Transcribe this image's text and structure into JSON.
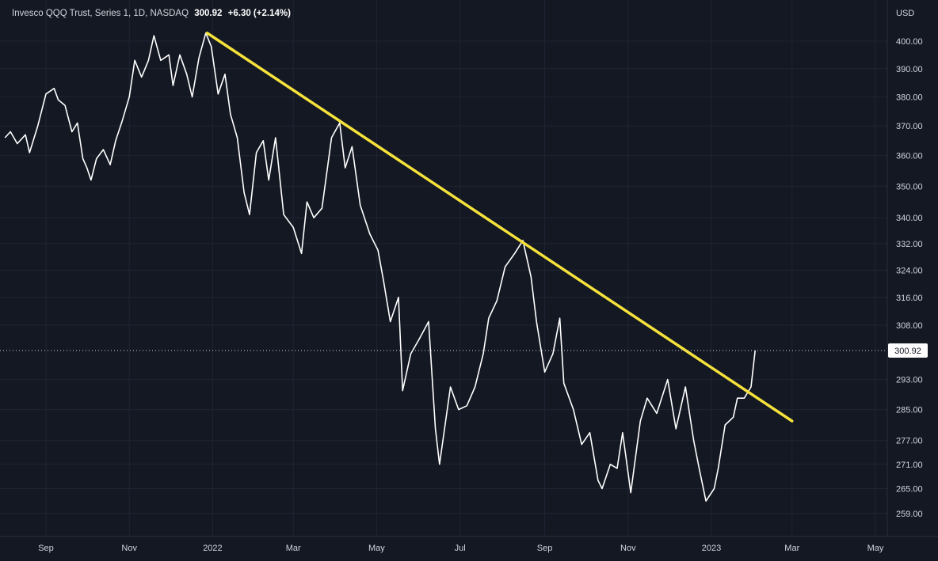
{
  "header": {
    "symbol_text": "Invesco QQQ Trust, Series 1, 1D, NASDAQ",
    "last_price": "300.92",
    "change": "+6.30 (+2.14%)"
  },
  "axis": {
    "currency": "USD"
  },
  "colors": {
    "background": "#141823",
    "grid": "#1f2433",
    "price_line": "#ffffff",
    "trendline": "#f5e23a",
    "axis_text": "#d1d4dc",
    "label_bg": "#ffffff",
    "label_text": "#141823"
  },
  "chart_data": {
    "type": "line",
    "title": "Invesco QQQ Trust, Series 1, 1D, NASDAQ",
    "xlabel": "",
    "ylabel": "",
    "ylim": [
      256,
      404
    ],
    "grid": true,
    "yscale": "log",
    "y_ticks": [
      400.0,
      390.0,
      380.0,
      370.0,
      360.0,
      350.0,
      340.0,
      332.0,
      324.0,
      316.0,
      308.0,
      293.0,
      285.0,
      277.0,
      271.0,
      265.0,
      259.0
    ],
    "y_tick_labels": [
      "400.00",
      "390.00",
      "380.00",
      "370.00",
      "360.00",
      "350.00",
      "340.00",
      "332.00",
      "324.00",
      "316.00",
      "308.00",
      "293.00",
      "285.00",
      "277.00",
      "271.00",
      "265.00",
      "259.00"
    ],
    "x_ticks": [
      "2021-09-01",
      "2021-11-01",
      "2022-01-01",
      "2022-03-01",
      "2022-05-01",
      "2022-07-01",
      "2022-09-01",
      "2022-11-01",
      "2023-01-01",
      "2023-03-01",
      "2023-05-01"
    ],
    "x_tick_labels": [
      "Sep",
      "Nov",
      "2022",
      "Mar",
      "May",
      "Jul",
      "Sep",
      "Nov",
      "2023",
      "Mar",
      "May"
    ],
    "last_value_label": "300.92",
    "series": [
      {
        "values": [
          [
            "2021-08-02",
            366
          ],
          [
            "2021-08-06",
            368
          ],
          [
            "2021-08-11",
            364
          ],
          [
            "2021-08-17",
            367
          ],
          [
            "2021-08-20",
            361
          ],
          [
            "2021-08-26",
            370
          ],
          [
            "2021-09-01",
            381
          ],
          [
            "2021-09-07",
            383
          ],
          [
            "2021-09-10",
            379
          ],
          [
            "2021-09-15",
            377
          ],
          [
            "2021-09-20",
            368
          ],
          [
            "2021-09-24",
            371
          ],
          [
            "2021-09-28",
            359
          ],
          [
            "2021-10-01",
            356
          ],
          [
            "2021-10-04",
            352
          ],
          [
            "2021-10-08",
            359
          ],
          [
            "2021-10-13",
            362
          ],
          [
            "2021-10-18",
            357
          ],
          [
            "2021-10-22",
            365
          ],
          [
            "2021-10-27",
            372
          ],
          [
            "2021-11-01",
            380
          ],
          [
            "2021-11-05",
            393
          ],
          [
            "2021-11-10",
            387
          ],
          [
            "2021-11-15",
            393
          ],
          [
            "2021-11-19",
            402
          ],
          [
            "2021-11-24",
            393
          ],
          [
            "2021-11-30",
            395
          ],
          [
            "2021-12-03",
            384
          ],
          [
            "2021-12-08",
            395
          ],
          [
            "2021-12-13",
            388
          ],
          [
            "2021-12-17",
            380
          ],
          [
            "2021-12-22",
            394
          ],
          [
            "2021-12-27",
            403
          ],
          [
            "2021-12-31",
            398
          ],
          [
            "2022-01-05",
            381
          ],
          [
            "2022-01-10",
            388
          ],
          [
            "2022-01-14",
            374
          ],
          [
            "2022-01-19",
            366
          ],
          [
            "2022-01-24",
            348
          ],
          [
            "2022-01-28",
            341
          ],
          [
            "2022-02-02",
            361
          ],
          [
            "2022-02-07",
            365
          ],
          [
            "2022-02-11",
            352
          ],
          [
            "2022-02-16",
            366
          ],
          [
            "2022-02-22",
            341
          ],
          [
            "2022-03-01",
            337
          ],
          [
            "2022-03-07",
            329
          ],
          [
            "2022-03-11",
            345
          ],
          [
            "2022-03-16",
            340
          ],
          [
            "2022-03-22",
            343
          ],
          [
            "2022-03-29",
            366
          ],
          [
            "2022-04-04",
            371
          ],
          [
            "2022-04-08",
            356
          ],
          [
            "2022-04-13",
            363
          ],
          [
            "2022-04-19",
            344
          ],
          [
            "2022-04-26",
            335
          ],
          [
            "2022-05-02",
            330
          ],
          [
            "2022-05-06",
            321
          ],
          [
            "2022-05-11",
            309
          ],
          [
            "2022-05-17",
            316
          ],
          [
            "2022-05-20",
            290
          ],
          [
            "2022-05-26",
            300
          ],
          [
            "2022-06-01",
            304
          ],
          [
            "2022-06-08",
            309
          ],
          [
            "2022-06-13",
            280
          ],
          [
            "2022-06-16",
            271
          ],
          [
            "2022-06-24",
            291
          ],
          [
            "2022-06-30",
            285
          ],
          [
            "2022-07-06",
            286
          ],
          [
            "2022-07-12",
            291
          ],
          [
            "2022-07-18",
            300
          ],
          [
            "2022-07-22",
            310
          ],
          [
            "2022-07-28",
            315
          ],
          [
            "2022-08-03",
            325
          ],
          [
            "2022-08-10",
            329
          ],
          [
            "2022-08-16",
            333
          ],
          [
            "2022-08-22",
            322
          ],
          [
            "2022-08-26",
            309
          ],
          [
            "2022-09-01",
            295
          ],
          [
            "2022-09-07",
            300
          ],
          [
            "2022-09-12",
            310
          ],
          [
            "2022-09-15",
            292
          ],
          [
            "2022-09-22",
            285
          ],
          [
            "2022-09-28",
            276
          ],
          [
            "2022-10-04",
            279
          ],
          [
            "2022-10-10",
            267
          ],
          [
            "2022-10-13",
            265
          ],
          [
            "2022-10-19",
            271
          ],
          [
            "2022-10-24",
            270
          ],
          [
            "2022-10-28",
            279
          ],
          [
            "2022-11-03",
            264
          ],
          [
            "2022-11-10",
            282
          ],
          [
            "2022-11-15",
            288
          ],
          [
            "2022-11-22",
            284
          ],
          [
            "2022-11-30",
            293
          ],
          [
            "2022-12-06",
            280
          ],
          [
            "2022-12-13",
            291
          ],
          [
            "2022-12-19",
            277
          ],
          [
            "2022-12-23",
            270
          ],
          [
            "2022-12-28",
            262
          ],
          [
            "2023-01-03",
            265
          ],
          [
            "2023-01-06",
            270
          ],
          [
            "2023-01-11",
            281
          ],
          [
            "2023-01-17",
            283
          ],
          [
            "2023-01-20",
            288
          ],
          [
            "2023-01-25",
            288
          ],
          [
            "2023-01-30",
            291
          ],
          [
            "2023-02-02",
            300.92
          ]
        ]
      }
    ],
    "trendline": {
      "start": [
        "2021-12-28",
        403
      ],
      "end": [
        "2023-03-01",
        282
      ],
      "color": "#f5e23a"
    }
  }
}
